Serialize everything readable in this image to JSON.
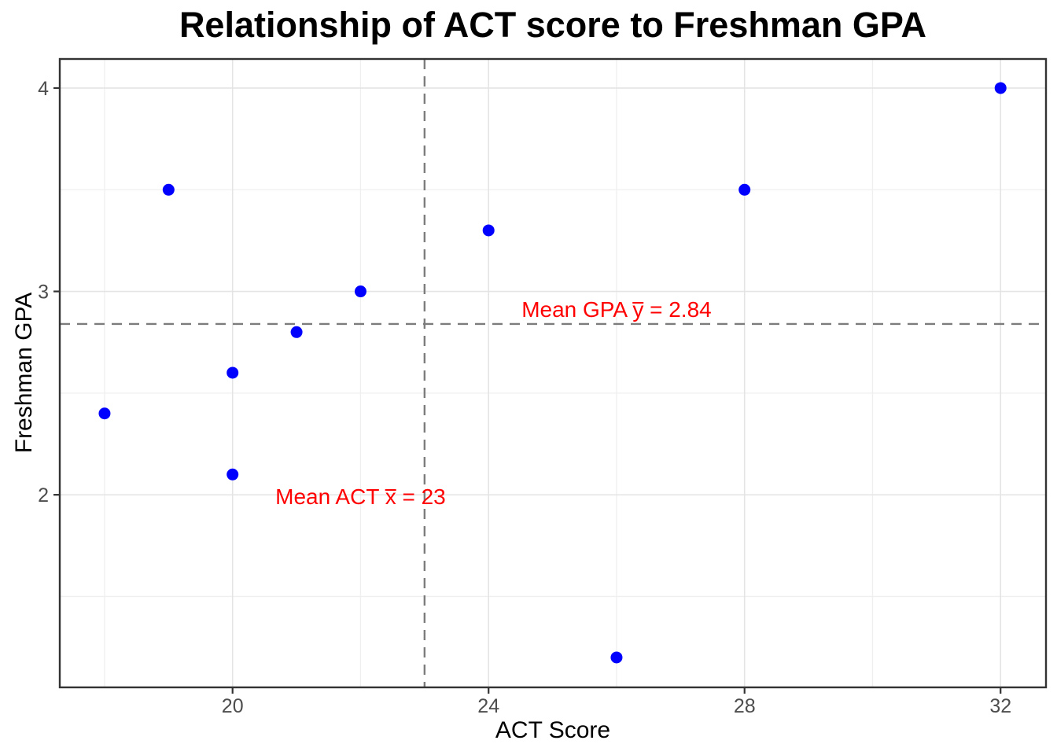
{
  "title": "Relationship of ACT score to Freshman GPA",
  "chart_data": {
    "type": "scatter",
    "title": "Relationship of ACT score to Freshman GPA",
    "xlabel": "ACT Score",
    "ylabel": "Freshman GPA",
    "points": [
      {
        "x": 18,
        "y": 2.4
      },
      {
        "x": 19,
        "y": 3.5
      },
      {
        "x": 20,
        "y": 2.6
      },
      {
        "x": 20,
        "y": 2.1
      },
      {
        "x": 21,
        "y": 2.8
      },
      {
        "x": 22,
        "y": 3.0
      },
      {
        "x": 24,
        "y": 3.3
      },
      {
        "x": 26,
        "y": 1.2
      },
      {
        "x": 28,
        "y": 3.5
      },
      {
        "x": 32,
        "y": 4.0
      }
    ],
    "xlim": [
      17.3,
      32.71
    ],
    "ylim": [
      1.053,
      4.143
    ],
    "x_major_ticks": [
      20,
      24,
      28,
      32
    ],
    "x_minor_gridlines": [
      18,
      22,
      26,
      30
    ],
    "y_major_ticks": [
      2,
      3,
      4
    ],
    "y_minor_gridlines": [
      1.5,
      2.5,
      3.5
    ],
    "grid": "major and minor, light gray on white panel",
    "legend": "none",
    "mean_lines": {
      "vertical": {
        "value": 23,
        "style": "dashed"
      },
      "horizontal": {
        "value": 2.84,
        "style": "dashed"
      }
    },
    "annotations": [
      {
        "prefix": "Mean GPA ",
        "var": "y",
        "suffix": " = 2.84",
        "full_text": "Mean GPA ȳ = 2.84",
        "x": 26.0,
        "y": 2.91
      },
      {
        "prefix": "Mean ACT ",
        "var": "x",
        "suffix": " = 23",
        "full_text": "Mean ACT x̄ = 23",
        "x": 22.0,
        "y": 1.99
      }
    ],
    "colors": {
      "point": "#0000FF",
      "mean_dashed_line": "#7c7c7c",
      "annotation_text": "#FF0000",
      "grid_major": "#e4e4e4",
      "grid_minor": "#efefef",
      "panel_border": "#333333",
      "tick_mark": "#333333",
      "tick_label": "#4d4d4d",
      "axis_title": "#000000",
      "title": "#000000"
    }
  }
}
